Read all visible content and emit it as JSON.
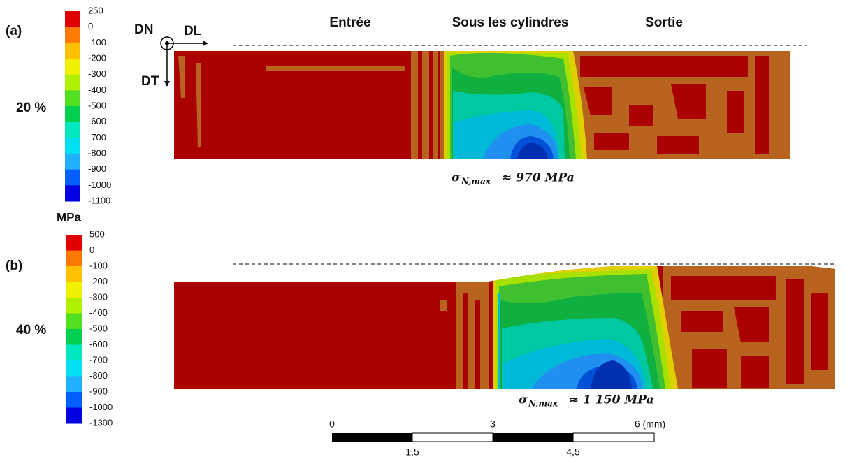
{
  "panels": [
    {
      "label": "(a)",
      "strain": "20 %",
      "legend_labels": [
        250,
        0,
        -100,
        -200,
        -300,
        -400,
        -500,
        -600,
        -700,
        -800,
        -900,
        -1000,
        -1100
      ],
      "stress_symbol": "σ",
      "stress_subscript": "N,max",
      "stress_value": "≈ 970 MPa"
    },
    {
      "label": "(b)",
      "strain": "40 %",
      "legend_labels": [
        500,
        0,
        -100,
        -200,
        -300,
        -400,
        -500,
        -600,
        -700,
        -800,
        -900,
        -1000,
        -1300
      ],
      "stress_symbol": "σ",
      "stress_subscript": "N,max",
      "stress_value": "≈ 1 150 MPa"
    }
  ],
  "legend_unit": "MPa",
  "axes": {
    "normal": "DN",
    "longitudinal": "DL",
    "transverse": "DT"
  },
  "zones": [
    "Entrée",
    "Sous les cylindres",
    "Sortie"
  ],
  "scale_bar": {
    "top_labels": [
      "0",
      "3",
      "6 (mm)"
    ],
    "bottom_labels": [
      "1,5",
      "4,5"
    ]
  }
}
